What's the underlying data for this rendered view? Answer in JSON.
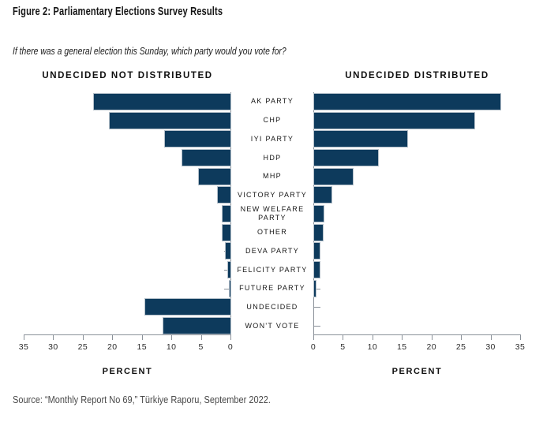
{
  "title": "Figure 2: Parliamentary Elections Survey Results",
  "subtitle": "If there was a general election this Sunday, which party would you vote for?",
  "source": "Source: “Monthly Report No 69,” Türkiye Raporu, September 2022.",
  "chart_data": {
    "type": "bar",
    "orientation": "horizontal-butterfly",
    "title": "Figure 2: Parliamentary Elections Survey Results",
    "xlabel": "PERCENT",
    "xlim": [
      0,
      35
    ],
    "x_ticks": [
      0,
      5,
      10,
      15,
      20,
      25,
      30,
      35
    ],
    "categories": [
      "AK PARTY",
      "CHP",
      "IYI PARTY",
      "HDP",
      "MHP",
      "VICTORY PARTY",
      "NEW WELFARE PARTY",
      "OTHER",
      "DEVA PARTY",
      "FELICITY PARTY",
      "FUTURE PARTY",
      "UNDECIDED",
      "WON'T VOTE"
    ],
    "series": [
      {
        "name": "UNDECIDED NOT DISTRIBUTED",
        "side": "left",
        "values": [
          23.1,
          20.5,
          11.1,
          8.1,
          5.3,
          2.2,
          1.3,
          1.3,
          0.8,
          0.4,
          0.2,
          14.4,
          11.3
        ]
      },
      {
        "name": "UNDECIDED DISTRIBUTED",
        "side": "right",
        "values": [
          31.5,
          27.1,
          15.8,
          10.8,
          6.5,
          2.9,
          1.6,
          1.5,
          1.0,
          0.9,
          0.3,
          0,
          0
        ]
      }
    ],
    "bar_color": "#0d3a5c",
    "axis_color": "#8a9199",
    "grid": false,
    "legend_position": "panel-headers"
  }
}
